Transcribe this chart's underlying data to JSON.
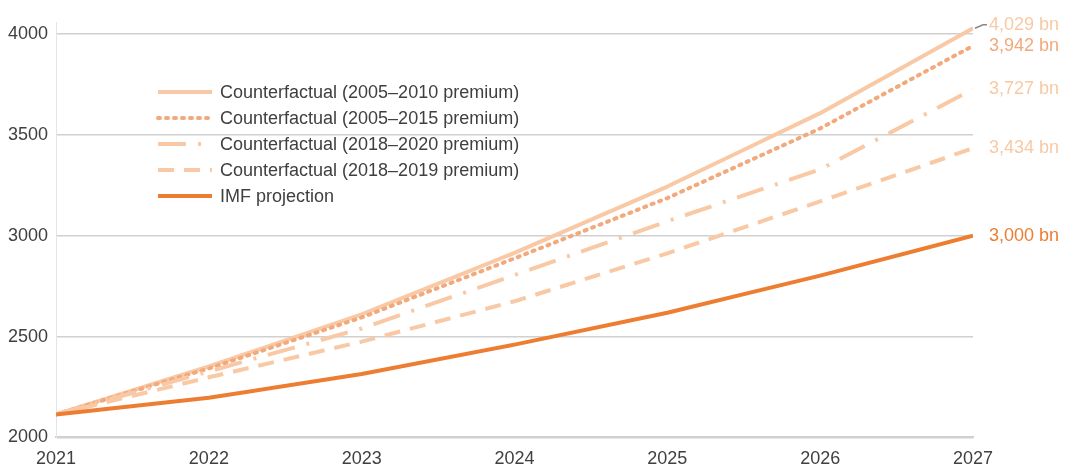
{
  "chart_data": {
    "type": "line",
    "x": [
      2021,
      2022,
      2023,
      2024,
      2025,
      2026,
      2027
    ],
    "series": [
      {
        "name": "Counterfactual (2005–2010 premium)",
        "color": "#f8c9a4",
        "line_style": "solid",
        "values": [
          2114,
          2352,
          2610,
          2915,
          3244,
          3608,
          4029
        ],
        "value_labels": [
          null,
          null,
          null,
          null,
          null,
          null,
          "4,029 bn"
        ]
      },
      {
        "name": "Counterfactual (2005–2015 premium)",
        "color": "#f2a97c",
        "line_style": "dotted",
        "values": [
          2114,
          2342,
          2595,
          2888,
          3187,
          3532,
          3942
        ],
        "value_labels": [
          null,
          null,
          null,
          null,
          null,
          null,
          "3,942 bn"
        ]
      },
      {
        "name": "Counterfactual (2018–2020 premium)",
        "color": "#f8c9a4",
        "line_style": "dashdot",
        "values": [
          2114,
          2327,
          2540,
          2805,
          3072,
          3329,
          3727
        ],
        "value_labels": [
          null,
          null,
          null,
          null,
          null,
          null,
          "3,727 bn"
        ]
      },
      {
        "name": "Counterfactual (2018–2019 premium)",
        "color": "#f8c9a4",
        "line_style": "dashed",
        "values": [
          2114,
          2298,
          2475,
          2675,
          2913,
          3170,
          3434
        ],
        "value_labels": [
          null,
          null,
          null,
          null,
          null,
          null,
          "3,434 bn"
        ]
      },
      {
        "name": "IMF projection",
        "color": "#ed7d31",
        "line_style": "solid",
        "values": [
          2114,
          2197,
          2314,
          2460,
          2618,
          2802,
          3000
        ],
        "value_labels": [
          null,
          null,
          null,
          null,
          null,
          null,
          "3,000 bn"
        ]
      }
    ],
    "xlim": [
      2021,
      2027
    ],
    "xticks": [
      2021,
      2022,
      2023,
      2024,
      2025,
      2026,
      2027
    ],
    "ylim": [
      2000,
      4060
    ],
    "yticks": [
      2000,
      2500,
      3000,
      3500,
      4000
    ],
    "grid": "y",
    "legend": "top left",
    "marker": "none"
  }
}
